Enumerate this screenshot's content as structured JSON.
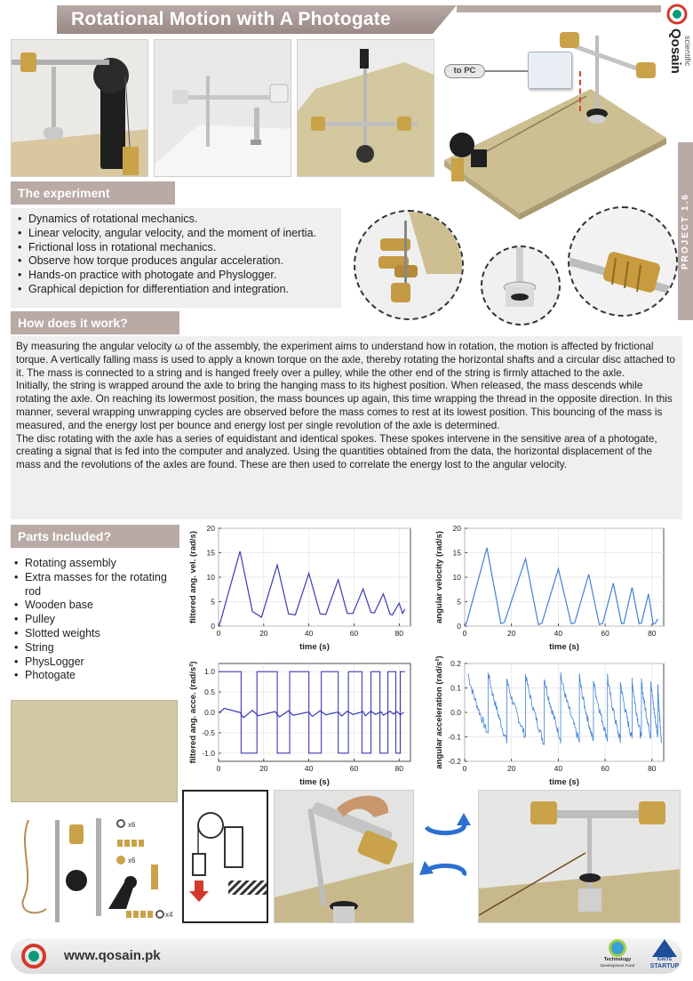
{
  "title": "Rotational Motion with A Photogate",
  "brand": {
    "name": "Qosain",
    "tagline": "scientific"
  },
  "project_tag": "PROJECT 1.6",
  "pc_label": "to PC",
  "colors": {
    "accent": "#b9aaa6",
    "chart_dark": "#3a3ab4",
    "chart_light": "#3f82d6",
    "board": "#c9bd8f"
  },
  "experiment": {
    "heading": "The experiment",
    "bullets": [
      "Dynamics of rotational mechanics.",
      "Linear velocity, angular velocity, and the moment of inertia.",
      "Frictional loss in rotational mechanics.",
      "Observe how torque produces angular acceleration.",
      "Hands-on practice with photogate and Physlogger.",
      "Graphical depiction for differentiation and integration."
    ]
  },
  "how": {
    "heading": "How does it work?",
    "paragraphs": [
      "By measuring the angular velocity ω of the assembly, the experiment aims to understand how in rotation, the motion is affected by frictional torque. A vertically falling mass is used to apply a known torque on the axle, thereby rotating the horizontal shafts and a circular disc attached to it. The mass is connected to a string and is hanged freely over a pulley, while the other end of the string is firmly attached to the axle.",
      "Initially, the string is wrapped around the axle to bring the hanging mass to its highest position. When released, the mass descends while rotating the axle. On reaching its lowermost position, the mass bounces up again, this time wrapping the thread in the opposite direction. In this manner, several wrapping unwrapping cycles are observed before the mass comes to rest at its lowest position. This bouncing of the mass is measured, and the energy lost per bounce and energy lost per single revolution of the axle is determined.",
      "The disc rotating with the axle has a series of equidistant and identical spokes. These spokes intervene in the sensitive area of a photogate, creating a signal that is fed into the computer and analyzed. Using the quantities obtained from the data, the horizontal displacement of the mass and the revolutions of the axles are found. These are then used to correlate the energy lost to the angular velocity."
    ]
  },
  "parts": {
    "heading": "Parts Included?",
    "items": [
      "Rotating assembly",
      "Extra masses for the rotating rod",
      "Wooden base",
      "Pulley",
      "Slotted weights",
      "String",
      "PhysLogger",
      "Photogate"
    ],
    "counts": [
      "x6",
      "x6",
      "x4"
    ]
  },
  "footer": {
    "url": "www.qosain.pk",
    "logo1_line1": "Technology",
    "logo1_line2": "Development Fund",
    "logo2_label": "STARTUP",
    "logo2_top": "IGNITE"
  },
  "chart_data": [
    {
      "type": "line",
      "ylabel": "filtered ang. vel. (rad/s)",
      "xlabel": "time (s)",
      "xlim": [
        0,
        85
      ],
      "ylim": [
        0,
        20
      ],
      "xticks": [
        0,
        20,
        40,
        60,
        80
      ],
      "yticks": [
        0,
        5,
        10,
        15,
        20
      ],
      "color": "#3a3ab4",
      "x": [
        0,
        1,
        9.5,
        15,
        19,
        26,
        31,
        34,
        40,
        45,
        47.5,
        53,
        57,
        59.5,
        64,
        67.5,
        69,
        73,
        76,
        77,
        80,
        81.5,
        82.5
      ],
      "y": [
        0,
        1.2,
        15.3,
        3,
        1.8,
        12.5,
        2.5,
        2.3,
        10.8,
        2.5,
        2.4,
        9.5,
        2.6,
        2.6,
        7.6,
        2.8,
        2.7,
        6.6,
        2.4,
        2.3,
        4.7,
        2.6,
        3.5
      ]
    },
    {
      "type": "line",
      "ylabel": "angular velocity (rad/s)",
      "xlabel": "time (s)",
      "xlim": [
        0,
        85
      ],
      "ylim": [
        0,
        20
      ],
      "xticks": [
        0,
        20,
        40,
        60,
        80
      ],
      "yticks": [
        0,
        5,
        10,
        15,
        20
      ],
      "color": "#3f82d6",
      "x": [
        0,
        1,
        9.5,
        15.5,
        17,
        26,
        31.5,
        33,
        40,
        45.5,
        47,
        53,
        57.5,
        59,
        63.5,
        67,
        68,
        71.5,
        74.5,
        75.5,
        78.5,
        80.5,
        81.5,
        82.5
      ],
      "y": [
        0,
        1,
        16,
        0.5,
        0.8,
        13.8,
        0.3,
        0.6,
        11.7,
        0.5,
        0.7,
        10.6,
        0.3,
        0.6,
        8.8,
        0.5,
        0.6,
        7.9,
        0.5,
        0.6,
        6.6,
        0.4,
        0.6,
        1.5
      ]
    },
    {
      "type": "line",
      "ylabel": "filtered ang. acce. (rad/s²)",
      "xlabel": "time (s)",
      "xlim": [
        0,
        85
      ],
      "ylim": [
        -1.2,
        1.2
      ],
      "xticks": [
        0,
        20,
        40,
        60,
        80
      ],
      "yticks": [
        -1.0,
        -0.5,
        0.0,
        0.5,
        1.0
      ],
      "color": "#3a3ab4",
      "square_edges": [
        10,
        17,
        26,
        31.5,
        40,
        45.5,
        53,
        57.5,
        63.5,
        67.5,
        71.5,
        75,
        78.5,
        80.5
      ],
      "x": [
        0,
        1,
        2.5,
        9.5,
        11,
        15,
        17.5,
        25,
        27,
        31,
        33,
        40,
        41.5,
        45,
        47.5,
        53,
        54.5,
        57,
        59.5,
        64,
        65,
        67.5,
        69.5,
        72,
        73,
        76,
        77.5,
        79,
        80.5,
        82
      ],
      "y": [
        0,
        0.02,
        0.1,
        0.0,
        -0.13,
        0.05,
        -0.08,
        0.02,
        -0.11,
        0.04,
        -0.07,
        0.01,
        -0.1,
        0.04,
        -0.06,
        0.01,
        -0.09,
        0.03,
        -0.05,
        0.02,
        -0.08,
        0.03,
        -0.05,
        0.01,
        -0.07,
        0.03,
        -0.04,
        0.02,
        -0.06,
        0.0
      ]
    },
    {
      "type": "line",
      "ylabel": "angular acceleration (rad/s²)",
      "xlabel": "time (s)",
      "xlim": [
        0,
        85
      ],
      "ylim": [
        -0.2,
        0.2
      ],
      "xticks": [
        0,
        20,
        40,
        60,
        80
      ],
      "yticks": [
        -0.2,
        -0.1,
        0,
        0.1,
        0.2
      ],
      "color": "#3f82d6",
      "peaks": [
        1.5,
        10,
        18,
        26,
        34,
        41,
        49,
        55,
        61,
        66.5,
        71.5,
        75.5,
        79.5,
        82.5
      ],
      "peak_values": [
        0.16,
        0.17,
        0.14,
        0.16,
        0.15,
        0.16,
        0.15,
        0.14,
        0.15,
        0.13,
        0.14,
        0.13,
        0.14,
        0.13
      ],
      "trough_values": [
        -0.09,
        -0.12,
        -0.1,
        -0.13,
        -0.11,
        -0.12,
        -0.12,
        -0.11,
        -0.12,
        -0.11,
        -0.11,
        -0.1,
        -0.1,
        -0.12
      ]
    }
  ]
}
